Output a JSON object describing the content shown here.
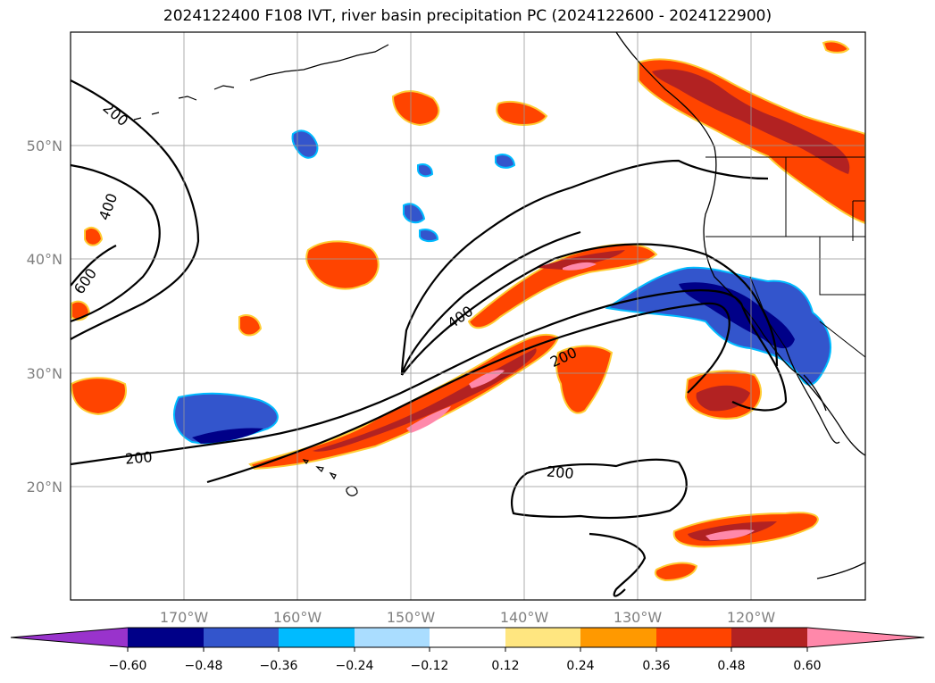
{
  "title": "2024122400 F108 IVT, river basin precipitation PC (2024122600 - 2024122900)",
  "map": {
    "lon_range": [
      -180,
      -110
    ],
    "lat_range": [
      10,
      60
    ],
    "lon_ticks": [
      {
        "value": -170,
        "label": "170°W"
      },
      {
        "value": -160,
        "label": "160°W"
      },
      {
        "value": -150,
        "label": "150°W"
      },
      {
        "value": -140,
        "label": "140°W"
      },
      {
        "value": -130,
        "label": "130°W"
      },
      {
        "value": -120,
        "label": "120°W"
      }
    ],
    "lat_ticks": [
      {
        "value": 20,
        "label": "20°N"
      },
      {
        "value": 30,
        "label": "30°N"
      },
      {
        "value": 40,
        "label": "40°N"
      },
      {
        "value": 50,
        "label": "50°N"
      }
    ],
    "gridlines": true,
    "contour_labels": [
      "200",
      "400",
      "600",
      "200",
      "400",
      "200",
      "200"
    ]
  },
  "colorbar": {
    "colors": [
      "#9933cc",
      "#000088",
      "#3355cc",
      "#00bbff",
      "#aaddff",
      "#ffffff",
      "#ffe680",
      "#ff9900",
      "#ff4400",
      "#b22222",
      "#ff88aa"
    ],
    "labels": [
      "−0.60",
      "−0.48",
      "−0.36",
      "−0.24",
      "−0.12",
      "0.12",
      "0.24",
      "0.36",
      "0.48",
      "0.60"
    ],
    "extend": "both"
  }
}
